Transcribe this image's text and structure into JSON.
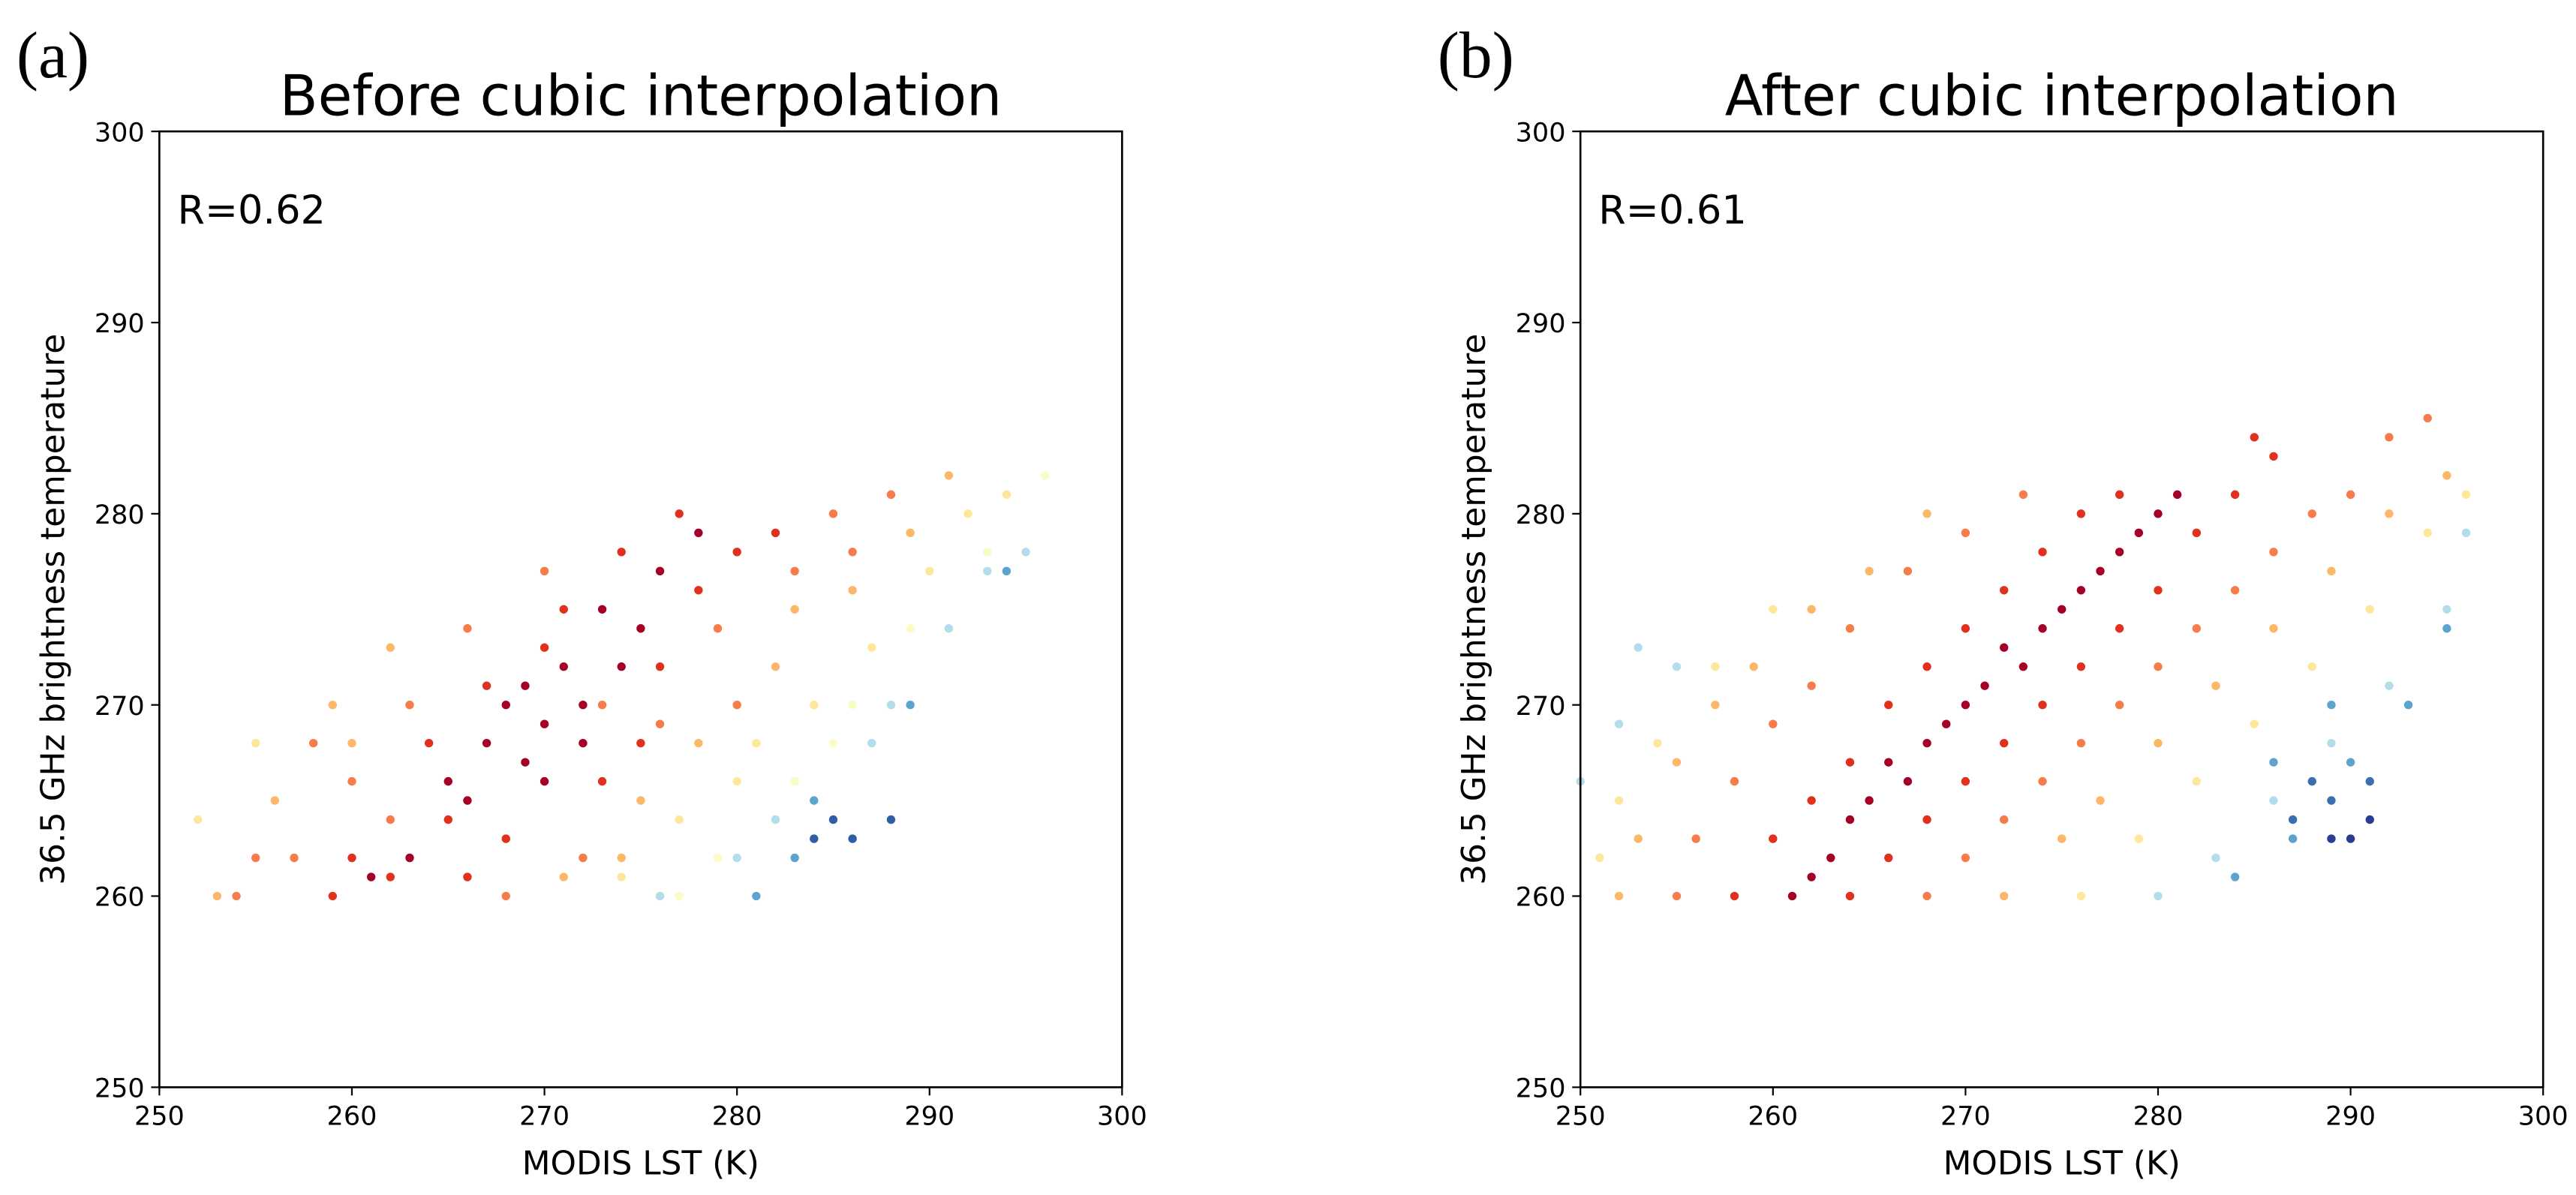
{
  "chart_data": [
    {
      "type": "scatter",
      "label": "(a)",
      "title": "Before cubic interpolation",
      "annotation": "R=0.62",
      "xlabel": "MODIS LST (K)",
      "ylabel": "36.5 GHz brightness temperature",
      "xlim": [
        250,
        300
      ],
      "ylim": [
        250,
        300
      ],
      "xticks": [
        250,
        260,
        270,
        280,
        290,
        300
      ],
      "yticks": [
        250,
        260,
        270,
        280,
        290,
        300
      ],
      "series": [
        {
          "color": "#a50026",
          "x": [
            268,
            270,
            271,
            269,
            273,
            274,
            267,
            272,
            275,
            270,
            266,
            261,
            263,
            265,
            276,
            278,
            272,
            269
          ],
          "y": [
            270,
            269,
            272,
            267,
            275,
            272,
            268,
            270,
            274,
            266,
            265,
            261,
            262,
            266,
            277,
            279,
            268,
            271
          ]
        },
        {
          "color": "#e0301e",
          "x": [
            265,
            267,
            271,
            274,
            277,
            280,
            262,
            259,
            264,
            276,
            278,
            273,
            268,
            266,
            260,
            282,
            270,
            275
          ],
          "y": [
            264,
            271,
            275,
            278,
            280,
            278,
            261,
            260,
            268,
            272,
            276,
            266,
            263,
            261,
            262,
            279,
            273,
            268
          ]
        },
        {
          "color": "#f67c4a",
          "x": [
            257,
            260,
            263,
            266,
            270,
            273,
            276,
            279,
            283,
            285,
            286,
            262,
            254,
            268,
            272,
            280,
            288,
            258,
            255
          ],
          "y": [
            262,
            266,
            270,
            274,
            277,
            270,
            269,
            274,
            277,
            280,
            278,
            264,
            260,
            260,
            262,
            270,
            281,
            268,
            262
          ]
        },
        {
          "color": "#fdb768",
          "x": [
            253,
            256,
            259,
            262,
            275,
            278,
            282,
            286,
            289,
            271,
            274,
            283,
            291,
            260
          ],
          "y": [
            260,
            265,
            270,
            273,
            265,
            268,
            272,
            276,
            279,
            261,
            262,
            275,
            282,
            268
          ]
        },
        {
          "color": "#fee79b",
          "x": [
            255,
            274,
            277,
            280,
            284,
            287,
            290,
            292,
            276,
            281,
            294,
            252
          ],
          "y": [
            268,
            261,
            264,
            266,
            270,
            273,
            277,
            280,
            260,
            268,
            281,
            264
          ]
        },
        {
          "color": "#fbfbc6",
          "x": [
            279,
            283,
            286,
            289,
            293,
            296,
            277,
            285
          ],
          "y": [
            262,
            266,
            270,
            274,
            278,
            282,
            260,
            268
          ]
        },
        {
          "color": "#b3ddeb",
          "x": [
            282,
            288,
            291,
            295,
            276,
            280,
            287,
            293
          ],
          "y": [
            264,
            270,
            274,
            278,
            260,
            262,
            268,
            277
          ]
        },
        {
          "color": "#5ea3cf",
          "x": [
            283,
            284,
            289,
            294,
            281
          ],
          "y": [
            262,
            265,
            270,
            277,
            260
          ]
        },
        {
          "color": "#2f5da6",
          "x": [
            284,
            286,
            288,
            285
          ],
          "y": [
            263,
            263,
            264,
            264
          ]
        }
      ]
    },
    {
      "type": "scatter",
      "label": "(b)",
      "title": "After cubic interpolation",
      "annotation": "R=0.61",
      "xlabel": "MODIS LST (K)",
      "ylabel": "36.5 GHz brightness temperature",
      "xlim": [
        250,
        300
      ],
      "ylim": [
        250,
        300
      ],
      "xticks": [
        250,
        260,
        270,
        280,
        290,
        300
      ],
      "yticks": [
        250,
        260,
        270,
        280,
        290,
        300
      ],
      "series": [
        {
          "color": "#e0301e",
          "x": [
            258,
            260,
            262,
            264,
            266,
            268,
            270,
            272,
            274,
            276,
            278,
            264,
            266,
            268,
            270,
            272,
            274,
            276,
            278,
            280,
            282,
            284,
            286,
            285
          ],
          "y": [
            260,
            263,
            265,
            267,
            270,
            272,
            274,
            276,
            278,
            280,
            281,
            260,
            262,
            264,
            266,
            268,
            270,
            272,
            274,
            276,
            279,
            281,
            283,
            284
          ]
        },
        {
          "color": "#a50026",
          "x": [
            261,
            263,
            265,
            267,
            269,
            271,
            273,
            275,
            277,
            279,
            281,
            262,
            270,
            276,
            264,
            266,
            278,
            272,
            274,
            268,
            280
          ],
          "y": [
            260,
            262,
            265,
            266,
            269,
            271,
            272,
            275,
            277,
            279,
            281,
            261,
            270,
            276,
            264,
            267,
            278,
            273,
            274,
            268,
            280
          ]
        },
        {
          "color": "#f67c4a",
          "x": [
            255,
            256,
            258,
            260,
            262,
            264,
            267,
            270,
            273,
            268,
            270,
            272,
            274,
            276,
            278,
            280,
            282,
            284,
            286,
            288,
            290,
            292,
            294
          ],
          "y": [
            260,
            263,
            266,
            269,
            271,
            274,
            277,
            279,
            281,
            260,
            262,
            264,
            266,
            268,
            270,
            272,
            274,
            276,
            278,
            280,
            281,
            284,
            285
          ]
        },
        {
          "color": "#fdb768",
          "x": [
            252,
            253,
            255,
            257,
            259,
            262,
            265,
            268,
            272,
            275,
            277,
            280,
            283,
            286,
            289,
            292,
            295
          ],
          "y": [
            260,
            263,
            267,
            270,
            272,
            275,
            277,
            280,
            260,
            263,
            265,
            268,
            271,
            274,
            277,
            280,
            282
          ]
        },
        {
          "color": "#fee79b",
          "x": [
            251,
            252,
            254,
            257,
            260,
            276,
            279,
            282,
            285,
            288,
            291,
            294,
            296
          ],
          "y": [
            262,
            265,
            268,
            272,
            275,
            260,
            263,
            266,
            269,
            272,
            275,
            279,
            281
          ]
        },
        {
          "color": "#b3ddeb",
          "x": [
            250,
            252,
            255,
            280,
            283,
            286,
            289,
            292,
            295,
            296,
            253
          ],
          "y": [
            266,
            269,
            272,
            260,
            262,
            265,
            268,
            271,
            275,
            279,
            273
          ]
        },
        {
          "color": "#5ea3cf",
          "x": [
            284,
            287,
            290,
            293,
            295,
            286,
            289
          ],
          "y": [
            261,
            263,
            267,
            270,
            274,
            267,
            270
          ]
        },
        {
          "color": "#3a6fb0",
          "x": [
            287,
            289,
            291,
            288
          ],
          "y": [
            264,
            265,
            266,
            266
          ]
        },
        {
          "color": "#2a3c94",
          "x": [
            289,
            291,
            290
          ],
          "y": [
            263,
            264,
            263
          ]
        }
      ]
    }
  ]
}
